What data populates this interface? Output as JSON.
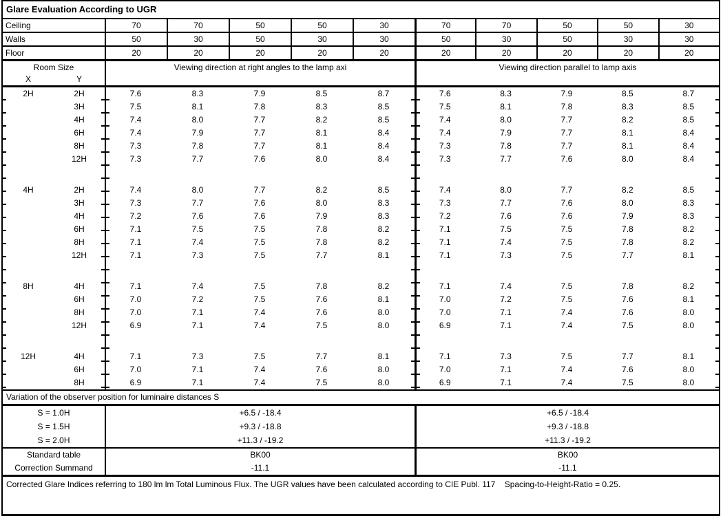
{
  "title": "Glare Evaluation According to UGR",
  "surface_rows": [
    {
      "label": "Ceiling",
      "values": [
        "70",
        "70",
        "50",
        "50",
        "30",
        "70",
        "70",
        "50",
        "50",
        "30"
      ]
    },
    {
      "label": "Walls",
      "values": [
        "50",
        "30",
        "50",
        "30",
        "30",
        "50",
        "30",
        "50",
        "30",
        "30"
      ]
    },
    {
      "label": "Floor",
      "values": [
        "20",
        "20",
        "20",
        "20",
        "20",
        "20",
        "20",
        "20",
        "20",
        "20"
      ]
    }
  ],
  "header": {
    "room_size": "Room Size",
    "x_label": "X",
    "y_label": "Y",
    "left_heading": "Viewing direction at right angles to the lamp axi",
    "right_heading": "Viewing direction parallel to lamp axis"
  },
  "blocks": [
    {
      "x": "2H",
      "rows": [
        {
          "y": "2H",
          "values": [
            "7.6",
            "8.3",
            "7.9",
            "8.5",
            "8.7",
            "7.6",
            "8.3",
            "7.9",
            "8.5",
            "8.7"
          ]
        },
        {
          "y": "3H",
          "values": [
            "7.5",
            "8.1",
            "7.8",
            "8.3",
            "8.5",
            "7.5",
            "8.1",
            "7.8",
            "8.3",
            "8.5"
          ]
        },
        {
          "y": "4H",
          "values": [
            "7.4",
            "8.0",
            "7.7",
            "8.2",
            "8.5",
            "7.4",
            "8.0",
            "7.7",
            "8.2",
            "8.5"
          ]
        },
        {
          "y": "6H",
          "values": [
            "7.4",
            "7.9",
            "7.7",
            "8.1",
            "8.4",
            "7.4",
            "7.9",
            "7.7",
            "8.1",
            "8.4"
          ]
        },
        {
          "y": "8H",
          "values": [
            "7.3",
            "7.8",
            "7.7",
            "8.1",
            "8.4",
            "7.3",
            "7.8",
            "7.7",
            "8.1",
            "8.4"
          ]
        },
        {
          "y": "12H",
          "values": [
            "7.3",
            "7.7",
            "7.6",
            "8.0",
            "8.4",
            "7.3",
            "7.7",
            "7.6",
            "8.0",
            "8.4"
          ]
        }
      ]
    },
    {
      "x": "4H",
      "rows": [
        {
          "y": "2H",
          "values": [
            "7.4",
            "8.0",
            "7.7",
            "8.2",
            "8.5",
            "7.4",
            "8.0",
            "7.7",
            "8.2",
            "8.5"
          ]
        },
        {
          "y": "3H",
          "values": [
            "7.3",
            "7.7",
            "7.6",
            "8.0",
            "8.3",
            "7.3",
            "7.7",
            "7.6",
            "8.0",
            "8.3"
          ]
        },
        {
          "y": "4H",
          "values": [
            "7.2",
            "7.6",
            "7.6",
            "7.9",
            "8.3",
            "7.2",
            "7.6",
            "7.6",
            "7.9",
            "8.3"
          ]
        },
        {
          "y": "6H",
          "values": [
            "7.1",
            "7.5",
            "7.5",
            "7.8",
            "8.2",
            "7.1",
            "7.5",
            "7.5",
            "7.8",
            "8.2"
          ]
        },
        {
          "y": "8H",
          "values": [
            "7.1",
            "7.4",
            "7.5",
            "7.8",
            "8.2",
            "7.1",
            "7.4",
            "7.5",
            "7.8",
            "8.2"
          ]
        },
        {
          "y": "12H",
          "values": [
            "7.1",
            "7.3",
            "7.5",
            "7.7",
            "8.1",
            "7.1",
            "7.3",
            "7.5",
            "7.7",
            "8.1"
          ]
        }
      ]
    },
    {
      "x": "8H",
      "rows": [
        {
          "y": "4H",
          "values": [
            "7.1",
            "7.4",
            "7.5",
            "7.8",
            "8.2",
            "7.1",
            "7.4",
            "7.5",
            "7.8",
            "8.2"
          ]
        },
        {
          "y": "6H",
          "values": [
            "7.0",
            "7.2",
            "7.5",
            "7.6",
            "8.1",
            "7.0",
            "7.2",
            "7.5",
            "7.6",
            "8.1"
          ]
        },
        {
          "y": "8H",
          "values": [
            "7.0",
            "7.1",
            "7.4",
            "7.6",
            "8.0",
            "7.0",
            "7.1",
            "7.4",
            "7.6",
            "8.0"
          ]
        },
        {
          "y": "12H",
          "values": [
            "6.9",
            "7.1",
            "7.4",
            "7.5",
            "8.0",
            "6.9",
            "7.1",
            "7.4",
            "7.5",
            "8.0"
          ]
        }
      ]
    },
    {
      "x": "12H",
      "rows": [
        {
          "y": "4H",
          "values": [
            "7.1",
            "7.3",
            "7.5",
            "7.7",
            "8.1",
            "7.1",
            "7.3",
            "7.5",
            "7.7",
            "8.1"
          ]
        },
        {
          "y": "6H",
          "values": [
            "7.0",
            "7.1",
            "7.4",
            "7.6",
            "8.0",
            "7.0",
            "7.1",
            "7.4",
            "7.6",
            "8.0"
          ]
        },
        {
          "y": "8H",
          "values": [
            "6.9",
            "7.1",
            "7.4",
            "7.5",
            "8.0",
            "6.9",
            "7.1",
            "7.4",
            "7.5",
            "8.0"
          ]
        }
      ]
    }
  ],
  "variation": {
    "heading": "Variation of the observer position for luminaire distances S",
    "rows": [
      {
        "label": "S = 1.0H",
        "left": "+6.5 / -18.4",
        "right": "+6.5 / -18.4"
      },
      {
        "label": "S = 1.5H",
        "left": "+9.3 / -18.8",
        "right": "+9.3 / -18.8"
      },
      {
        "label": "S = 2.0H",
        "left": "+11.3 / -19.2",
        "right": "+11.3 / -19.2"
      }
    ]
  },
  "summary": {
    "rows": [
      {
        "label": "Standard table",
        "left": "BK00",
        "right": "BK00"
      },
      {
        "label": "Correction Summand",
        "left": "-11.1",
        "right": "-11.1"
      }
    ]
  },
  "footer": "Corrected Glare Indices referring to 180 lm lm Total Luminous Flux. The UGR values have been calculated according to CIE Publ. 117    Spacing-to-Height-Ratio = 0.25."
}
